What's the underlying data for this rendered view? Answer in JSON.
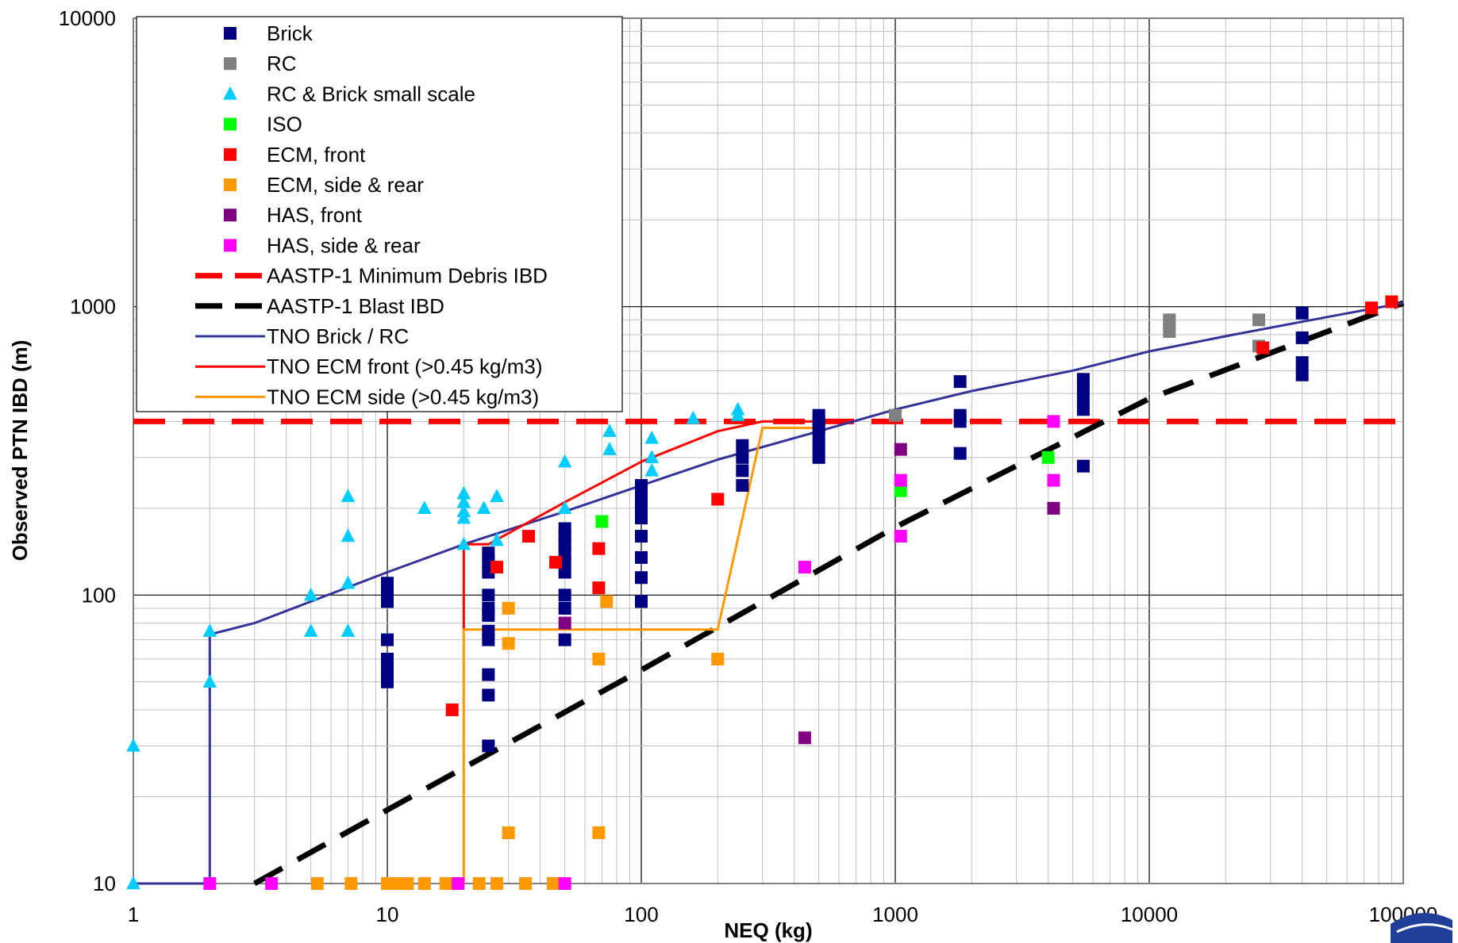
{
  "chart_data": {
    "type": "scatter",
    "title": "",
    "xlabel": "NEQ (kg)",
    "ylabel": "Observed PTN IBD (m)",
    "xscale": "log",
    "yscale": "log",
    "xlim": [
      1,
      100000
    ],
    "ylim": [
      10,
      10000
    ],
    "x_ticks": [
      "1",
      "10",
      "100",
      "1000",
      "10000",
      "100000"
    ],
    "y_ticks": [
      "10",
      "100",
      "1000",
      "10000"
    ],
    "grid": "major and minor",
    "legend_position": "top-left",
    "series": [
      {
        "name": "Brick",
        "kind": "marker",
        "marker": "square",
        "color": "#000080",
        "points": [
          [
            10,
            110
          ],
          [
            10,
            105
          ],
          [
            10,
            100
          ],
          [
            10,
            95
          ],
          [
            10,
            70
          ],
          [
            10,
            60
          ],
          [
            10,
            55
          ],
          [
            10,
            50
          ],
          [
            25,
            140
          ],
          [
            25,
            130
          ],
          [
            25,
            120
          ],
          [
            25,
            100
          ],
          [
            25,
            90
          ],
          [
            25,
            85
          ],
          [
            25,
            75
          ],
          [
            25,
            70
          ],
          [
            25,
            53
          ],
          [
            25,
            45
          ],
          [
            25,
            30
          ],
          [
            50,
            170
          ],
          [
            50,
            160
          ],
          [
            50,
            150
          ],
          [
            50,
            140
          ],
          [
            50,
            130
          ],
          [
            50,
            120
          ],
          [
            50,
            100
          ],
          [
            50,
            90
          ],
          [
            50,
            70
          ],
          [
            100,
            240
          ],
          [
            100,
            220
          ],
          [
            100,
            200
          ],
          [
            100,
            185
          ],
          [
            100,
            160
          ],
          [
            100,
            135
          ],
          [
            100,
            115
          ],
          [
            100,
            95
          ],
          [
            250,
            330
          ],
          [
            250,
            300
          ],
          [
            250,
            270
          ],
          [
            250,
            240
          ],
          [
            500,
            420
          ],
          [
            500,
            400
          ],
          [
            500,
            380
          ],
          [
            500,
            360
          ],
          [
            500,
            330
          ],
          [
            500,
            300
          ],
          [
            1800,
            550
          ],
          [
            1800,
            420
          ],
          [
            1800,
            400
          ],
          [
            1800,
            310
          ],
          [
            5500,
            560
          ],
          [
            5500,
            520
          ],
          [
            5500,
            480
          ],
          [
            5500,
            440
          ],
          [
            5500,
            280
          ],
          [
            40000,
            950
          ],
          [
            40000,
            780
          ],
          [
            40000,
            640
          ],
          [
            40000,
            580
          ]
        ]
      },
      {
        "name": "RC",
        "kind": "marker",
        "marker": "square",
        "color": "#808080",
        "points": [
          [
            1000,
            420
          ],
          [
            12000,
            900
          ],
          [
            12000,
            870
          ],
          [
            12000,
            820
          ],
          [
            27000,
            900
          ],
          [
            27000,
            730
          ]
        ]
      },
      {
        "name": "RC & Brick small scale",
        "kind": "marker",
        "marker": "triangle",
        "color": "#00ccff",
        "points": [
          [
            1,
            30
          ],
          [
            1,
            10
          ],
          [
            2,
            75
          ],
          [
            2,
            50
          ],
          [
            5,
            100
          ],
          [
            5,
            75
          ],
          [
            7,
            220
          ],
          [
            7,
            160
          ],
          [
            7,
            110
          ],
          [
            7,
            75
          ],
          [
            14,
            200
          ],
          [
            20,
            225
          ],
          [
            20,
            210
          ],
          [
            20,
            195
          ],
          [
            20,
            185
          ],
          [
            20,
            150
          ],
          [
            24,
            200
          ],
          [
            27,
            220
          ],
          [
            27,
            155
          ],
          [
            50,
            290
          ],
          [
            50,
            200
          ],
          [
            75,
            370
          ],
          [
            75,
            320
          ],
          [
            110,
            350
          ],
          [
            110,
            300
          ],
          [
            110,
            270
          ],
          [
            160,
            410
          ],
          [
            240,
            440
          ],
          [
            240,
            420
          ]
        ]
      },
      {
        "name": "ISO",
        "kind": "marker",
        "marker": "square",
        "color": "#00ff00",
        "points": [
          [
            70,
            180
          ],
          [
            1050,
            230
          ],
          [
            4000,
            300
          ]
        ]
      },
      {
        "name": "ECM, front",
        "kind": "marker",
        "marker": "square",
        "color": "#ff0000",
        "points": [
          [
            18,
            40
          ],
          [
            27,
            125
          ],
          [
            36,
            160
          ],
          [
            46,
            130
          ],
          [
            68,
            145
          ],
          [
            68,
            106
          ],
          [
            200,
            215
          ],
          [
            28000,
            720
          ],
          [
            75000,
            990
          ],
          [
            90000,
            1040
          ]
        ]
      },
      {
        "name": "ECM, side & rear",
        "kind": "marker",
        "marker": "square",
        "color": "#ff9900",
        "points": [
          [
            30,
            90
          ],
          [
            30,
            68
          ],
          [
            30,
            15
          ],
          [
            68,
            60
          ],
          [
            68,
            15
          ],
          [
            73,
            95
          ],
          [
            200,
            60
          ],
          [
            5.3,
            10
          ],
          [
            7.2,
            10
          ],
          [
            10,
            10
          ],
          [
            11,
            10
          ],
          [
            12,
            10
          ],
          [
            14,
            10
          ],
          [
            17,
            10
          ],
          [
            23,
            10
          ],
          [
            27,
            10
          ],
          [
            35,
            10
          ],
          [
            45,
            10
          ]
        ]
      },
      {
        "name": "HAS, front",
        "kind": "marker",
        "marker": "square",
        "color": "#800080",
        "points": [
          [
            50,
            80
          ],
          [
            440,
            32
          ],
          [
            1050,
            320
          ],
          [
            4200,
            200
          ]
        ]
      },
      {
        "name": "HAS, side & rear",
        "kind": "marker",
        "marker": "square",
        "color": "#ff00ff",
        "points": [
          [
            440,
            125
          ],
          [
            1050,
            250
          ],
          [
            1050,
            160
          ],
          [
            4200,
            400
          ],
          [
            4200,
            250
          ],
          [
            2,
            10
          ],
          [
            3.5,
            10
          ],
          [
            19,
            10
          ],
          [
            50,
            10
          ]
        ]
      },
      {
        "name": "AASTP-1 Minimum Debris IBD",
        "kind": "line",
        "style": "dashed",
        "color": "#ff0000",
        "points": [
          [
            1,
            400
          ],
          [
            100000,
            400
          ]
        ]
      },
      {
        "name": "AASTP-1 Blast IBD",
        "kind": "line",
        "style": "dashed",
        "color": "#000000",
        "points": [
          [
            3,
            10
          ],
          [
            10,
            18
          ],
          [
            100,
            55
          ],
          [
            1000,
            172
          ],
          [
            10000,
            480
          ],
          [
            100000,
            1030
          ]
        ]
      },
      {
        "name": "TNO Brick / RC",
        "kind": "line",
        "style": "solid",
        "color": "#333399",
        "points": [
          [
            1,
            10
          ],
          [
            2,
            10
          ],
          [
            2,
            73
          ],
          [
            3,
            80
          ],
          [
            5,
            95
          ],
          [
            10,
            120
          ],
          [
            20,
            150
          ],
          [
            50,
            195
          ],
          [
            100,
            240
          ],
          [
            200,
            295
          ],
          [
            500,
            370
          ],
          [
            1000,
            440
          ],
          [
            2000,
            510
          ],
          [
            5000,
            600
          ],
          [
            10000,
            700
          ],
          [
            20000,
            790
          ],
          [
            50000,
            920
          ],
          [
            100000,
            1030
          ]
        ]
      },
      {
        "name": "TNO ECM front (>0.45 kg/m3)",
        "kind": "line",
        "style": "solid",
        "color": "#ff0000",
        "points": [
          [
            20,
            76
          ],
          [
            20,
            150
          ],
          [
            25,
            150
          ],
          [
            50,
            210
          ],
          [
            100,
            290
          ],
          [
            200,
            370
          ],
          [
            300,
            400
          ],
          [
            500,
            400
          ]
        ]
      },
      {
        "name": "TNO ECM side (>0.45 kg/m3)",
        "kind": "line",
        "style": "solid",
        "color": "#ff9900",
        "points": [
          [
            20,
            10
          ],
          [
            20,
            76
          ],
          [
            200,
            76
          ],
          [
            300,
            380
          ],
          [
            500,
            380
          ]
        ]
      }
    ]
  }
}
